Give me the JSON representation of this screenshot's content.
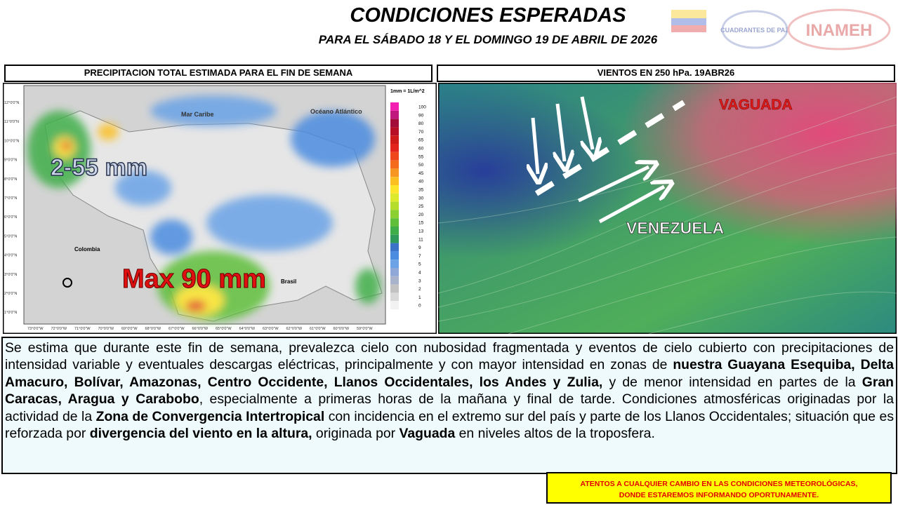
{
  "header": {
    "title": "CONDICIONES ESPERADAS",
    "subtitle": "PARA EL SÁBADO 18 Y EL DOMINGO 19 DE ABRIL DE 2026",
    "logos": [
      "CUADRANTES DE PAZ",
      "INAMEH"
    ]
  },
  "left_panel": {
    "title": "PRECIPITACION TOTAL ESTIMADA PARA EL FIN DE SEMANA",
    "legend_title": "1mm = 1L/m^2",
    "legend": [
      "100",
      "90",
      "80",
      "70",
      "65",
      "60",
      "55",
      "50",
      "45",
      "40",
      "35",
      "30",
      "25",
      "20",
      "15",
      "13",
      "11",
      "9",
      "7",
      "5",
      "4",
      "3",
      "2",
      "1",
      "0"
    ],
    "legend_colors": [
      "#f21fb0",
      "#c0187d",
      "#a30d3a",
      "#b71026",
      "#cf1a1a",
      "#e3241c",
      "#f0461c",
      "#f46b1e",
      "#f89622",
      "#fbbf22",
      "#fce52a",
      "#ddea2c",
      "#b5dd2e",
      "#8bcf32",
      "#5fbf3a",
      "#3fae4a",
      "#2f9a5c",
      "#3a73c8",
      "#4c8ce0",
      "#6ba3e6",
      "#8fa8d8",
      "#a9b3cc",
      "#c2c2c2",
      "#d9d9d9",
      "#f2f2f2"
    ],
    "sea_labels": [
      "Mar Caribe",
      "Océano Atlántico"
    ],
    "country_labels": [
      "Colombia",
      "Brasil"
    ],
    "annotations": [
      "2-55 mm",
      "Max 90 mm"
    ],
    "lat_labels": [
      "12°0'0\"N",
      "11°0'0\"N",
      "10°0'0\"N",
      "9°0'0\"N",
      "8°0'0\"N",
      "7°0'0\"N",
      "6°0'0\"N",
      "5°0'0\"N",
      "4°0'0\"N",
      "3°0'0\"N",
      "2°0'0\"N",
      "1°0'0\"N"
    ],
    "lon_labels": [
      "73°0'0\"W",
      "72°0'0\"W",
      "71°0'0\"W",
      "70°0'0\"W",
      "69°0'0\"W",
      "68°0'0\"W",
      "67°0'0\"W",
      "66°0'0\"W",
      "65°0'0\"W",
      "64°0'0\"W",
      "63°0'0\"W",
      "62°0'0\"W",
      "61°0'0\"W",
      "60°0'0\"W",
      "59°0'0\"W"
    ]
  },
  "right_panel": {
    "title": "VIENTOS EN 250 hPa. 19ABR26",
    "labels": [
      "VAGUADA",
      "VENEZUELA"
    ]
  },
  "description": [
    {
      "text": "Se estima que durante este fin de semana, prevalezca cielo con nubosidad fragmentada y eventos de cielo cubierto con precipitaciones de intensidad variable y eventuales descargas eléctricas, principalmente y con mayor intensidad en zonas de ",
      "bold": false
    },
    {
      "text": "nuestra Guayana Esequiba, Delta Amacuro, Bolívar, Amazonas, Centro Occidente, Llanos Occidentales, los Andes y Zulia,",
      "bold": true
    },
    {
      "text": " y de menor intensidad en partes de la ",
      "bold": false
    },
    {
      "text": "Gran Caracas, Aragua y Carabobo",
      "bold": true
    },
    {
      "text": ", especialmente a primeras horas de la mañana y final de tarde. Condiciones atmosféricas originadas por la actividad de la ",
      "bold": false
    },
    {
      "text": "Zona de Convergencia Intertropical",
      "bold": true
    },
    {
      "text": " con incidencia en el extremo sur del país y parte de los Llanos Occidentales; situación que es reforzada por ",
      "bold": false
    },
    {
      "text": "divergencia del viento en la altura,",
      "bold": true
    },
    {
      "text": " originada por ",
      "bold": false
    },
    {
      "text": "Vaguada",
      "bold": true
    },
    {
      "text": " en niveles altos de la troposfera.",
      "bold": false
    }
  ],
  "warning": {
    "lines": [
      "ATENTOS A CUALQUIER CAMBIO EN LAS CONDICIONES METEOROLÓGICAS,",
      "DONDE ESTAREMOS INFORMANDO OPORTUNAMENTE."
    ]
  }
}
